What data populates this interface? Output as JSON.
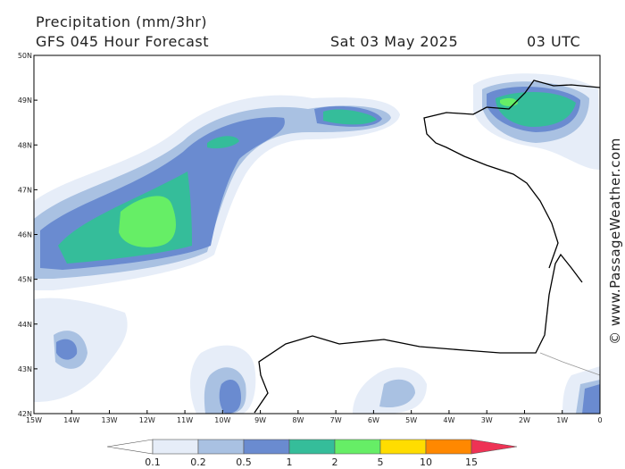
{
  "header": {
    "title": "Precipitation (mm/3hr)",
    "model": "GFS 045 Hour Forecast",
    "date": "Sat 03 May 2025",
    "time": "03 UTC"
  },
  "map": {
    "lat_labels": [
      "50N",
      "49N",
      "48N",
      "47N",
      "46N",
      "45N",
      "44N",
      "43N",
      "42N"
    ],
    "lon_labels": [
      "15W",
      "14W",
      "13W",
      "12W",
      "11W",
      "10W",
      "9W",
      "8W",
      "7W",
      "6W",
      "5W",
      "4W",
      "3W",
      "2W",
      "1W",
      "0"
    ]
  },
  "legend": {
    "levels": [
      0.1,
      0.2,
      0.5,
      1,
      2,
      5,
      10,
      15
    ],
    "colors": [
      "#ffffff",
      "#e6edf8",
      "#a9c1e2",
      "#6a8bd0",
      "#35bd9a",
      "#66ee66",
      "#ffdd00",
      "#ff8800",
      "#ee3355"
    ]
  },
  "watermark": "© www.PassageWeather.com"
}
